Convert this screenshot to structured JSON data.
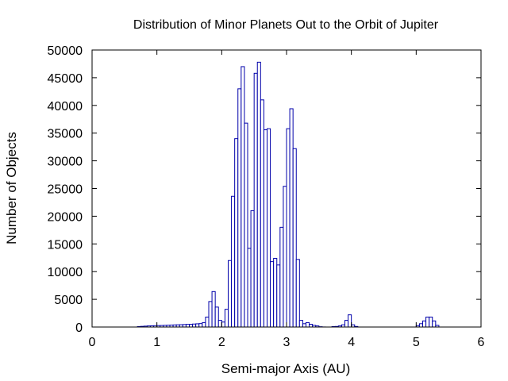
{
  "chart_data": {
    "type": "bar",
    "title": "Distribution of Minor Planets Out to the Orbit of Jupiter",
    "xlabel": "Semi-major Axis (AU)",
    "ylabel": "Number of Objects",
    "xlim": [
      0,
      6
    ],
    "ylim": [
      0,
      50000
    ],
    "x_ticks": [
      0,
      1,
      2,
      3,
      4,
      5,
      6
    ],
    "y_ticks": [
      0,
      5000,
      10000,
      15000,
      20000,
      25000,
      30000,
      35000,
      40000,
      45000,
      50000
    ],
    "bin_width": 0.05,
    "grid": false,
    "legend": "none",
    "bar_color": "#0000aa",
    "bin_starts": [
      0.7,
      0.75,
      0.8,
      0.85,
      0.9,
      0.95,
      1.0,
      1.05,
      1.1,
      1.15,
      1.2,
      1.25,
      1.3,
      1.35,
      1.4,
      1.45,
      1.5,
      1.55,
      1.6,
      1.65,
      1.7,
      1.75,
      1.8,
      1.85,
      1.9,
      1.95,
      2.0,
      2.05,
      2.1,
      2.15,
      2.2,
      2.25,
      2.3,
      2.35,
      2.4,
      2.45,
      2.5,
      2.55,
      2.6,
      2.65,
      2.7,
      2.75,
      2.8,
      2.85,
      2.9,
      2.95,
      3.0,
      3.05,
      3.1,
      3.15,
      3.2,
      3.25,
      3.3,
      3.35,
      3.4,
      3.45,
      3.5,
      3.55,
      3.6,
      3.65,
      3.7,
      3.75,
      3.8,
      3.85,
      3.9,
      3.95,
      4.0,
      4.05,
      4.1,
      4.15,
      4.2,
      4.25,
      4.3,
      4.35,
      4.4,
      4.45,
      4.5,
      4.55,
      4.6,
      4.65,
      4.7,
      4.75,
      4.8,
      4.85,
      4.9,
      4.95,
      5.0,
      5.05,
      5.1,
      5.15,
      5.2,
      5.25,
      5.3
    ],
    "values": [
      80,
      120,
      160,
      200,
      220,
      240,
      260,
      280,
      300,
      320,
      350,
      380,
      400,
      420,
      450,
      480,
      500,
      540,
      580,
      620,
      800,
      1800,
      4600,
      6400,
      3600,
      1200,
      900,
      3200,
      12000,
      23600,
      34000,
      43000,
      47000,
      36800,
      14200,
      21000,
      45800,
      47800,
      41000,
      35600,
      35800,
      11800,
      12400,
      11200,
      18000,
      25400,
      35800,
      39400,
      32200,
      12200,
      1200,
      600,
      800,
      500,
      300,
      200,
      50,
      10,
      0,
      0,
      80,
      100,
      200,
      400,
      1200,
      2200,
      400,
      100,
      0,
      0,
      0,
      0,
      0,
      0,
      0,
      0,
      0,
      0,
      0,
      0,
      0,
      0,
      0,
      0,
      0,
      0,
      250,
      600,
      1100,
      1800,
      1800,
      1100,
      300
    ]
  }
}
